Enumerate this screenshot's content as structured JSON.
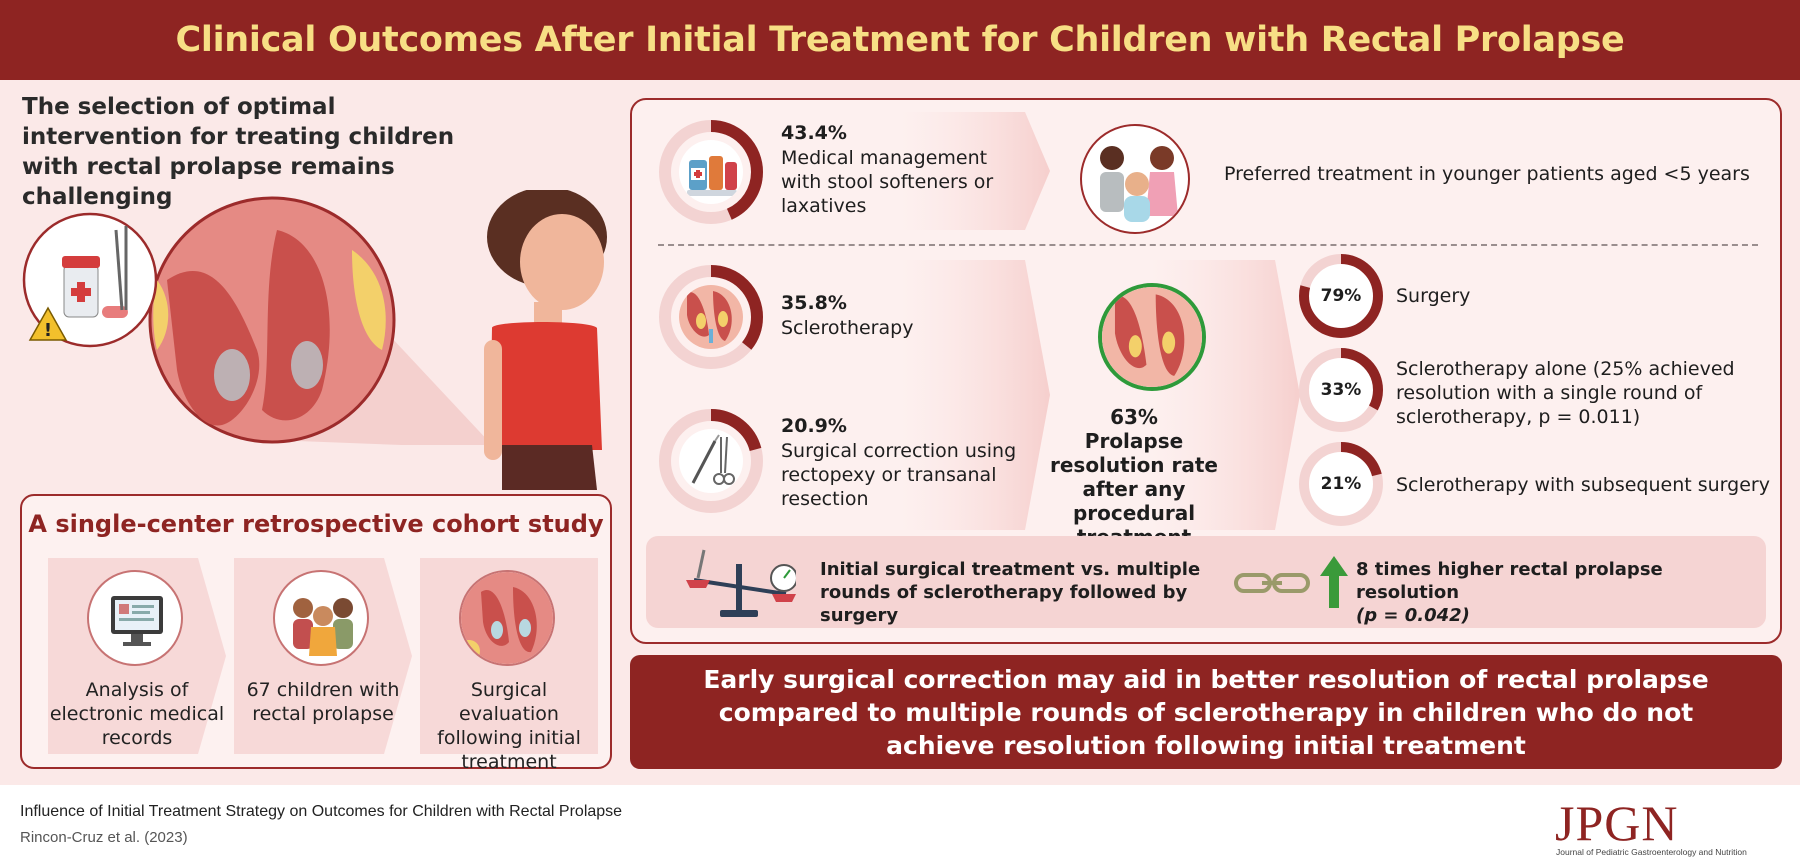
{
  "header": {
    "title": "Clinical Outcomes After Initial Treatment for Children with Rectal Prolapse"
  },
  "intro": {
    "text": "The selection of optimal intervention for treating children with rectal prolapse remains challenging"
  },
  "cohort": {
    "title": "A single-center retrospective cohort study",
    "steps": [
      {
        "label": "Analysis of electronic medical records",
        "icon": "computer-records-icon"
      },
      {
        "label": "67 children with rectal prolapse",
        "icon": "children-group-icon"
      },
      {
        "label": "Surgical evaluation following initial treatment",
        "icon": "rectal-anatomy-icon"
      }
    ]
  },
  "treatments": [
    {
      "percent_label": "43.4%",
      "value": 43.4,
      "description": "Medical management with stool softeners or laxatives",
      "icon": "medication-icon"
    },
    {
      "percent_label": "35.8%",
      "value": 35.8,
      "description": "Sclerotherapy",
      "icon": "sclerotherapy-icon"
    },
    {
      "percent_label": "20.9%",
      "value": 20.9,
      "description": "Surgical correction using rectopexy or transanal resection",
      "icon": "surgical-instruments-icon"
    }
  ],
  "preferred": {
    "text": "Preferred treatment in younger patients aged <5 years",
    "icon": "young-children-icon"
  },
  "procedural": {
    "percent_label": "63%",
    "value": 63,
    "label": "Prolapse resolution rate after any procedural treatment"
  },
  "outcomes": [
    {
      "percent_label": "79%",
      "value": 79,
      "label": "Surgery"
    },
    {
      "percent_label": "33%",
      "value": 33,
      "label": "Sclerotherapy alone (25% achieved resolution with a single round of sclerotherapy, p = 0.011)"
    },
    {
      "percent_label": "21%",
      "value": 21,
      "label": "Sclerotherapy with subsequent surgery"
    }
  ],
  "comparison": {
    "left_text": "Initial surgical treatment vs. multiple rounds of sclerotherapy followed by surgery",
    "right_text": "8 times higher rectal prolapse resolution",
    "right_p": "(p = 0.042)"
  },
  "conclusion": {
    "text": "Early surgical correction may aid in better resolution of rectal prolapse compared to multiple rounds of sclerotherapy in children who do not achieve resolution following initial treatment"
  },
  "footer": {
    "citation_title": "Influence of Initial Treatment Strategy on Outcomes for Children with Rectal Prolapse",
    "citation_authors": "Rincon-Cruz et al. (2023)",
    "logo": "JPGN",
    "logo_subtitle": "Journal of Pediatric Gastroenterology and Nutrition"
  },
  "colors": {
    "brand": "#8e2422",
    "title_text": "#f7df85",
    "background": "#fbe9e8",
    "ring_track": "#f3d3d2",
    "success_arrow": "#3a9a3a"
  },
  "chart_data": [
    {
      "type": "pie",
      "title": "",
      "categories": [
        "Medical management",
        "Sclerotherapy",
        "Surgical correction"
      ],
      "values": [
        43.4,
        35.8,
        20.9
      ]
    },
    {
      "type": "pie",
      "title": "",
      "categories": [
        "Surgery",
        "Sclerotherapy alone",
        "Sclerotherapy with subsequent surgery"
      ],
      "values": [
        79,
        33,
        21
      ]
    }
  ]
}
